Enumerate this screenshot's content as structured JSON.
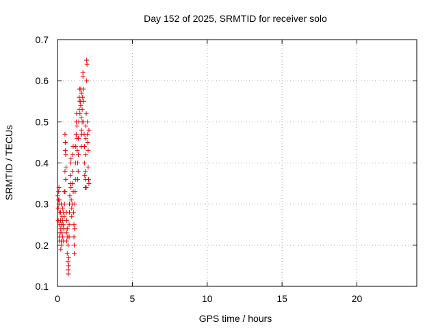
{
  "chart_data": {
    "type": "scatter",
    "title": "Day 152 of 2025, SRMTID for receiver solo",
    "xlabel": "GPS time / hours",
    "ylabel": "SRMTID / TECUs",
    "xlim": [
      0,
      24
    ],
    "ylim": [
      0.1,
      0.7
    ],
    "xticks": [
      0,
      5,
      10,
      15,
      20
    ],
    "xtick_labels": [
      "0",
      "5",
      "10",
      "15",
      "20"
    ],
    "yticks": [
      0.1,
      0.2,
      0.3,
      0.4,
      0.5,
      0.6,
      0.7
    ],
    "ytick_labels": [
      "0.1",
      "0.2",
      "0.3",
      "0.4",
      "0.5",
      "0.6",
      "0.7"
    ],
    "grid": true,
    "marker": "+",
    "color": "#dd0000",
    "series": [
      {
        "points": [
          [
            0.02,
            0.32
          ],
          [
            0.05,
            0.26
          ],
          [
            0.05,
            0.29
          ],
          [
            0.07,
            0.31
          ],
          [
            0.08,
            0.33
          ],
          [
            0.1,
            0.3
          ],
          [
            0.1,
            0.34
          ],
          [
            0.12,
            0.21
          ],
          [
            0.12,
            0.22
          ],
          [
            0.13,
            0.28
          ],
          [
            0.15,
            0.25
          ],
          [
            0.15,
            0.31
          ],
          [
            0.18,
            0.23
          ],
          [
            0.2,
            0.26
          ],
          [
            0.2,
            0.28
          ],
          [
            0.22,
            0.19
          ],
          [
            0.22,
            0.24
          ],
          [
            0.25,
            0.3
          ],
          [
            0.25,
            0.21
          ],
          [
            0.28,
            0.2
          ],
          [
            0.28,
            0.25
          ],
          [
            0.3,
            0.27
          ],
          [
            0.3,
            0.23
          ],
          [
            0.33,
            0.26
          ],
          [
            0.35,
            0.29
          ],
          [
            0.35,
            0.22
          ],
          [
            0.38,
            0.25
          ],
          [
            0.4,
            0.28
          ],
          [
            0.4,
            0.21
          ],
          [
            0.42,
            0.24
          ],
          [
            0.45,
            0.33
          ],
          [
            0.45,
            0.27
          ],
          [
            0.47,
            0.3
          ],
          [
            0.5,
            0.33
          ],
          [
            0.5,
            0.38
          ],
          [
            0.5,
            0.47
          ],
          [
            0.52,
            0.43
          ],
          [
            0.52,
            0.45
          ],
          [
            0.55,
            0.42
          ],
          [
            0.55,
            0.36
          ],
          [
            0.57,
            0.39
          ],
          [
            0.6,
            0.28
          ],
          [
            0.6,
            0.23
          ],
          [
            0.62,
            0.26
          ],
          [
            0.62,
            0.21
          ],
          [
            0.65,
            0.24
          ],
          [
            0.65,
            0.18
          ],
          [
            0.68,
            0.22
          ],
          [
            0.7,
            0.2
          ],
          [
            0.7,
            0.16
          ],
          [
            0.72,
            0.14
          ],
          [
            0.72,
            0.13
          ],
          [
            0.75,
            0.15
          ],
          [
            0.75,
            0.17
          ],
          [
            0.78,
            0.22
          ],
          [
            0.78,
            0.25
          ],
          [
            0.8,
            0.28
          ],
          [
            0.8,
            0.3
          ],
          [
            0.82,
            0.32
          ],
          [
            0.85,
            0.35
          ],
          [
            0.85,
            0.37
          ],
          [
            0.88,
            0.4
          ],
          [
            0.9,
            0.41
          ],
          [
            0.9,
            0.34
          ],
          [
            0.92,
            0.31
          ],
          [
            0.95,
            0.29
          ],
          [
            0.95,
            0.27
          ],
          [
            0.98,
            0.3
          ],
          [
            1.0,
            0.35
          ],
          [
            1.0,
            0.38
          ],
          [
            1.02,
            0.42
          ],
          [
            1.05,
            0.44
          ],
          [
            1.05,
            0.33
          ],
          [
            1.08,
            0.28
          ],
          [
            1.1,
            0.25
          ],
          [
            1.1,
            0.22
          ],
          [
            1.12,
            0.2
          ],
          [
            1.12,
            0.18
          ],
          [
            1.15,
            0.24
          ],
          [
            1.15,
            0.3
          ],
          [
            1.18,
            0.33
          ],
          [
            1.2,
            0.36
          ],
          [
            1.2,
            0.4
          ],
          [
            1.22,
            0.44
          ],
          [
            1.25,
            0.47
          ],
          [
            1.25,
            0.5
          ],
          [
            1.28,
            0.52
          ],
          [
            1.3,
            0.49
          ],
          [
            1.3,
            0.46
          ],
          [
            1.32,
            0.43
          ],
          [
            1.35,
            0.4
          ],
          [
            1.35,
            0.36
          ],
          [
            1.38,
            0.38
          ],
          [
            1.4,
            0.42
          ],
          [
            1.4,
            0.46
          ],
          [
            1.42,
            0.5
          ],
          [
            1.45,
            0.53
          ],
          [
            1.45,
            0.56
          ],
          [
            1.48,
            0.58
          ],
          [
            1.5,
            0.55
          ],
          [
            1.5,
            0.52
          ],
          [
            1.52,
            0.55
          ],
          [
            1.55,
            0.58
          ],
          [
            1.55,
            0.54
          ],
          [
            1.58,
            0.51
          ],
          [
            1.6,
            0.48
          ],
          [
            1.6,
            0.44
          ],
          [
            1.62,
            0.47
          ],
          [
            1.65,
            0.5
          ],
          [
            1.65,
            0.53
          ],
          [
            1.68,
            0.56
          ],
          [
            1.7,
            0.61
          ],
          [
            1.7,
            0.62
          ],
          [
            1.72,
            0.58
          ],
          [
            1.75,
            0.55
          ],
          [
            1.75,
            0.5
          ],
          [
            1.78,
            0.47
          ],
          [
            1.8,
            0.44
          ],
          [
            1.8,
            0.4
          ],
          [
            1.82,
            0.37
          ],
          [
            1.85,
            0.34
          ],
          [
            1.85,
            0.38
          ],
          [
            1.88,
            0.42
          ],
          [
            1.9,
            0.46
          ],
          [
            1.9,
            0.49
          ],
          [
            1.92,
            0.52
          ],
          [
            1.95,
            0.6
          ],
          [
            1.95,
            0.65
          ],
          [
            1.97,
            0.64
          ],
          [
            2.0,
            0.5
          ],
          [
            2.0,
            0.47
          ],
          [
            2.02,
            0.45
          ],
          [
            2.05,
            0.43
          ],
          [
            2.05,
            0.39
          ],
          [
            2.08,
            0.36
          ],
          [
            2.1,
            0.35
          ],
          [
            2.1,
            0.48
          ],
          [
            1.92,
            0.34
          ],
          [
            1.88,
            0.36
          ],
          [
            1.6,
            0.57
          ]
        ]
      }
    ]
  }
}
